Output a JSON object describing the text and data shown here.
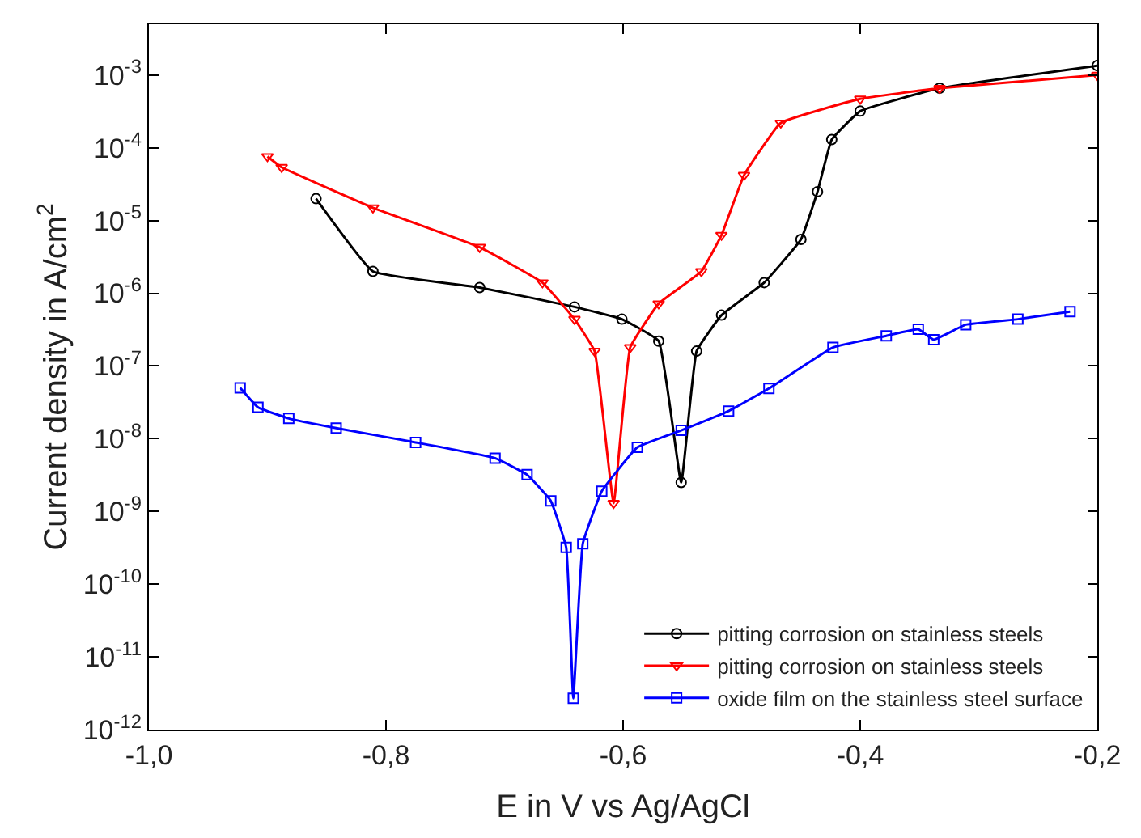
{
  "chart_data": {
    "type": "line",
    "xlabel": "E in V vs Ag/AgCl",
    "ylabel": "Current density in A/cm$^{2}$",
    "log": "y",
    "xlim": [
      -1.0,
      -0.2
    ],
    "ylim": [
      1e-12,
      0.005
    ],
    "xticks": [
      {
        "value": -1.0,
        "label": "-1,0"
      },
      {
        "value": -0.8,
        "label": "-0,8"
      },
      {
        "value": -0.6,
        "label": "-0,6"
      },
      {
        "value": -0.4,
        "label": "-0,4"
      },
      {
        "value": -0.2,
        "label": "-0,2"
      }
    ],
    "yticks": [
      {
        "value": 1e-12,
        "label": "10$^{-12}$"
      },
      {
        "value": 1e-11,
        "label": "10$^{-11}$"
      },
      {
        "value": 1e-10,
        "label": "10$^{-10}$"
      },
      {
        "value": 1e-09,
        "label": "10$^{-9}$"
      },
      {
        "value": 1e-08,
        "label": "10$^{-8}$"
      },
      {
        "value": 1e-07,
        "label": "10$^{-7}$"
      },
      {
        "value": 1e-06,
        "label": "10$^{-6}$"
      },
      {
        "value": 1e-05,
        "label": "10$^{-5}$"
      },
      {
        "value": 0.0001,
        "label": "10$^{-4}$"
      },
      {
        "value": 0.001,
        "label": "10$^{-3}$"
      }
    ],
    "legend": "bottom right",
    "series": [
      {
        "name": "pitting corrosion on stainless steels",
        "color": "#000000",
        "marker": "circle",
        "x": [
          -0.859,
          -0.811,
          -0.721,
          -0.641,
          -0.601,
          -0.57,
          -0.551,
          -0.538,
          -0.517,
          -0.481,
          -0.45,
          -0.436,
          -0.424,
          -0.4,
          -0.333,
          -0.2
        ],
        "values": [
          2e-05,
          2e-06,
          1.2e-06,
          6.5e-07,
          4.4e-07,
          2.2e-07,
          2.5e-09,
          1.6e-07,
          5e-07,
          1.4e-06,
          5.5e-06,
          2.5e-05,
          0.00013,
          0.00032,
          0.00066,
          0.00135
        ]
      },
      {
        "name": "pitting corrosion on stainless steels",
        "color": "#ff0000",
        "marker": "triangle",
        "x": [
          -0.9,
          -0.888,
          -0.811,
          -0.721,
          -0.668,
          -0.641,
          -0.624,
          -0.608,
          -0.594,
          -0.57,
          -0.534,
          -0.517,
          -0.498,
          -0.467,
          -0.4,
          -0.333,
          -0.2
        ],
        "values": [
          7.6e-05,
          5.4e-05,
          1.5e-05,
          4.3e-06,
          1.4e-06,
          4.4e-07,
          1.6e-07,
          1.3e-09,
          1.8e-07,
          7.2e-07,
          2e-06,
          6.3e-06,
          4.2e-05,
          0.00022,
          0.00047,
          0.00066,
          0.001
        ]
      },
      {
        "name": "oxide film on the stainless steel surface",
        "color": "#0000ff",
        "marker": "square",
        "x": [
          -0.923,
          -0.908,
          -0.882,
          -0.842,
          -0.775,
          -0.708,
          -0.681,
          -0.661,
          -0.648,
          -0.642,
          -0.634,
          -0.618,
          -0.588,
          -0.551,
          -0.511,
          -0.477,
          -0.423,
          -0.378,
          -0.351,
          -0.338,
          -0.311,
          -0.267,
          -0.223
        ],
        "values": [
          5e-08,
          2.7e-08,
          1.9e-08,
          1.4e-08,
          8.9e-09,
          5.4e-09,
          3.2e-09,
          1.4e-09,
          3.2e-10,
          2.7e-12,
          3.6e-10,
          1.9e-09,
          7.6e-09,
          1.3e-08,
          2.4e-08,
          4.9e-08,
          1.8e-07,
          2.6e-07,
          3.2e-07,
          2.3e-07,
          3.7e-07,
          4.4e-07,
          5.6e-07
        ]
      }
    ]
  }
}
